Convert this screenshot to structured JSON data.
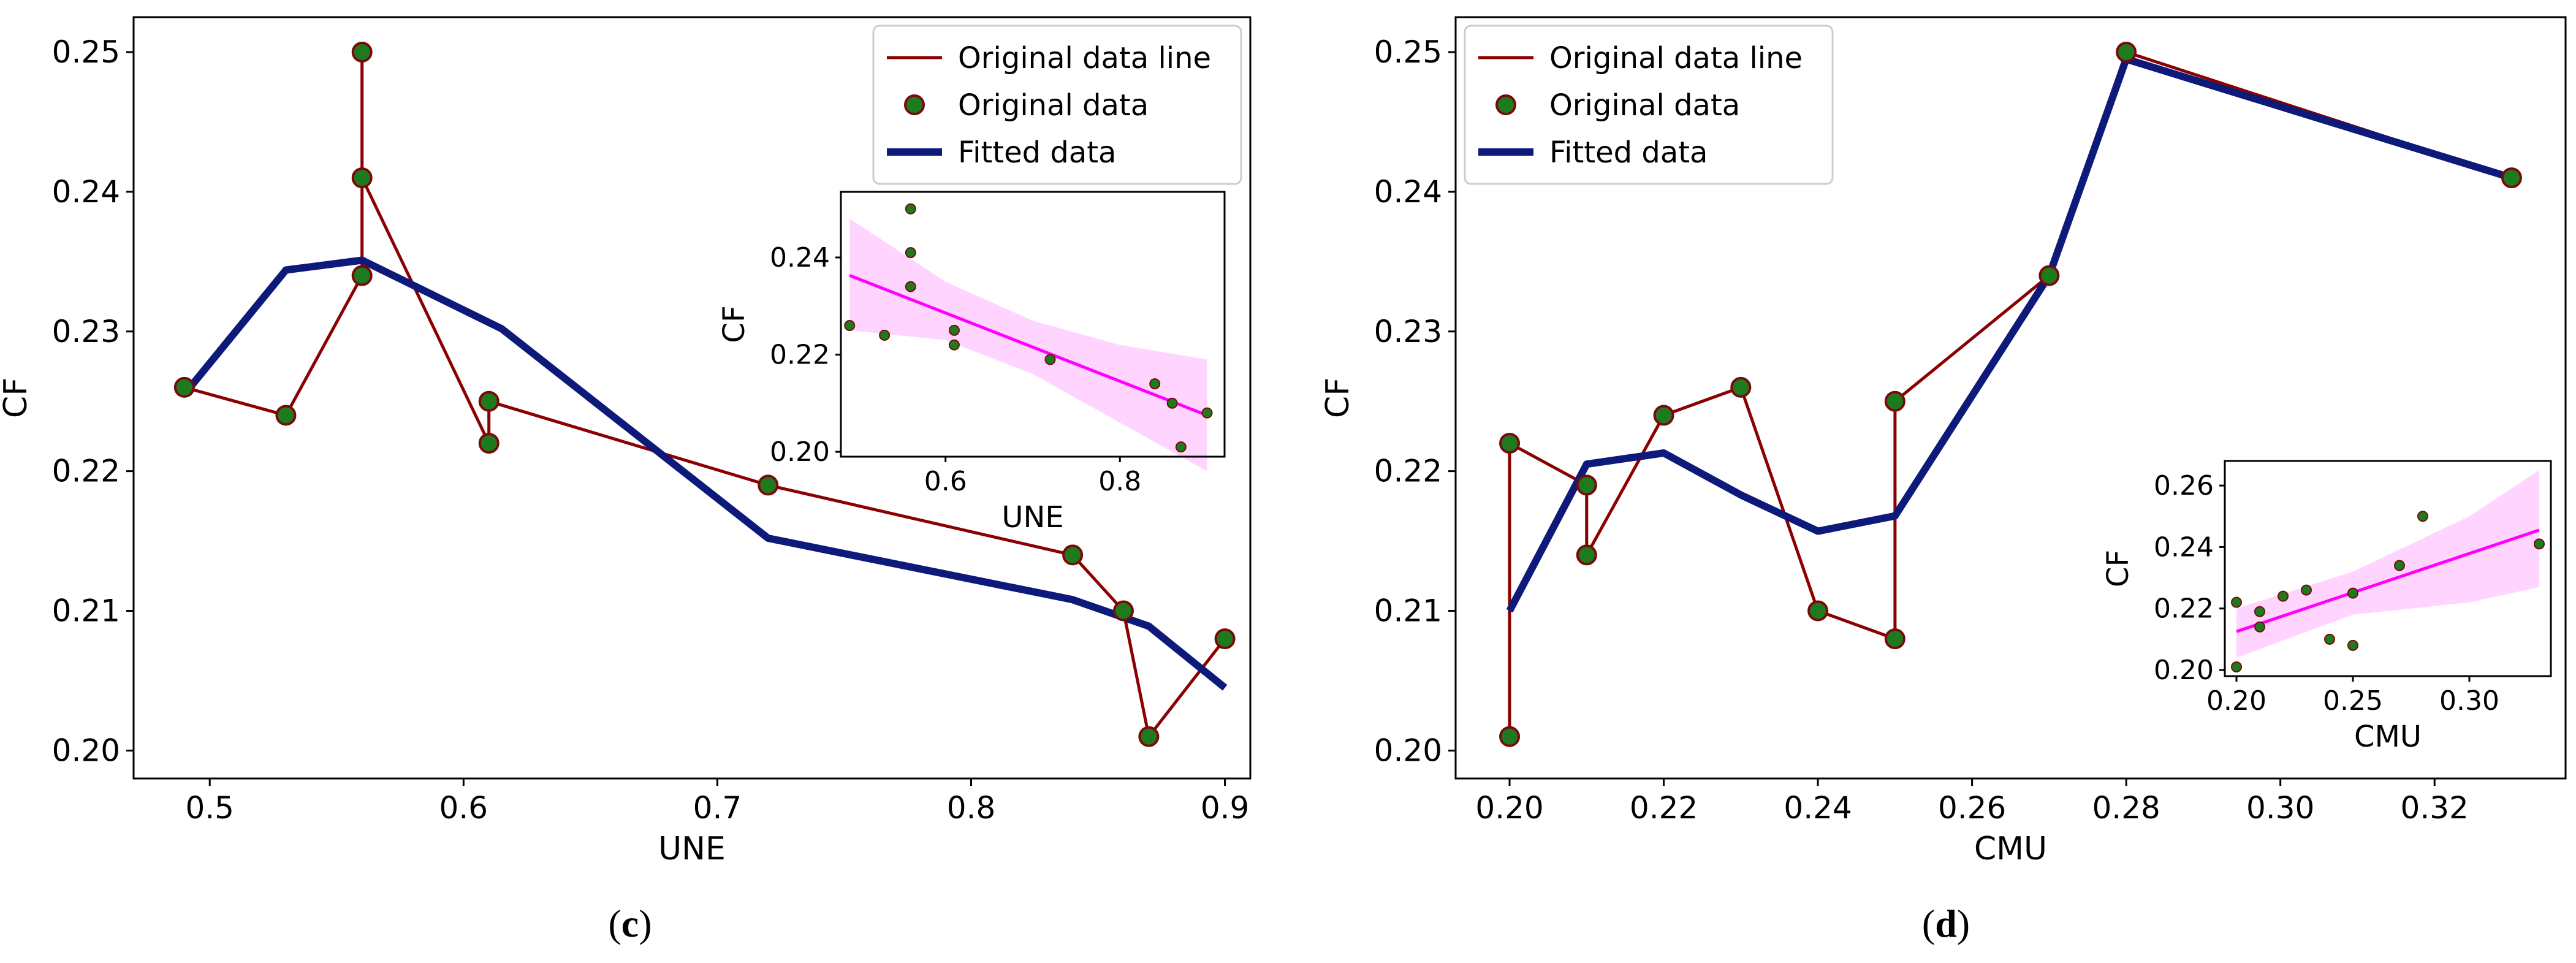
{
  "colors": {
    "data_line": "#8b0000",
    "marker_fill": "#1e7a1e",
    "marker_edge": "#7a0a0a",
    "fitted_line": "#0d1a7a",
    "regression_line": "#ff00ff",
    "ci_band": "#ffb3ff",
    "axes": "#000000",
    "background": "#ffffff"
  },
  "legend": {
    "original_line": "Original data line",
    "original_data": "Original data",
    "fitted": "Fitted data"
  },
  "chart_data": [
    {
      "id": "c",
      "panel_label": "c",
      "type": "line",
      "xlabel": "UNE",
      "ylabel": "CF",
      "xlim": [
        0.47,
        0.91
      ],
      "ylim": [
        0.198,
        0.2525
      ],
      "xticks": [
        0.5,
        0.6,
        0.7,
        0.8,
        0.9
      ],
      "xtick_labels": [
        "0.5",
        "0.6",
        "0.7",
        "0.8",
        "0.9"
      ],
      "yticks": [
        0.2,
        0.21,
        0.22,
        0.23,
        0.24,
        0.25
      ],
      "ytick_labels": [
        "0.20",
        "0.21",
        "0.22",
        "0.23",
        "0.24",
        "0.25"
      ],
      "legend_position": "top-right",
      "series": [
        {
          "name": "Original data line",
          "kind": "line",
          "x": [
            0.49,
            0.53,
            0.56,
            0.56,
            0.56,
            0.61,
            0.61,
            0.72,
            0.84,
            0.86,
            0.87,
            0.9
          ],
          "y": [
            0.226,
            0.224,
            0.234,
            0.25,
            0.241,
            0.222,
            0.225,
            0.219,
            0.214,
            0.21,
            0.201,
            0.208
          ]
        },
        {
          "name": "Original data",
          "kind": "scatter",
          "x": [
            0.49,
            0.53,
            0.56,
            0.56,
            0.56,
            0.61,
            0.61,
            0.72,
            0.84,
            0.86,
            0.87,
            0.9
          ],
          "y": [
            0.226,
            0.224,
            0.234,
            0.25,
            0.241,
            0.222,
            0.225,
            0.219,
            0.214,
            0.21,
            0.201,
            0.208
          ]
        },
        {
          "name": "Fitted data",
          "kind": "line",
          "x": [
            0.49,
            0.53,
            0.56,
            0.615,
            0.72,
            0.84,
            0.87,
            0.9
          ],
          "y": [
            0.2255,
            0.2344,
            0.2351,
            0.2302,
            0.2152,
            0.2108,
            0.2089,
            0.2045
          ]
        }
      ],
      "inset": {
        "type": "scatter",
        "position": "upper-right",
        "xlabel": "UNE",
        "ylabel": "CF",
        "xlim": [
          0.48,
          0.92
        ],
        "ylim": [
          0.199,
          0.2535
        ],
        "xticks": [
          0.6,
          0.8
        ],
        "xtick_labels": [
          "0.6",
          "0.8"
        ],
        "yticks": [
          0.2,
          0.22,
          0.24
        ],
        "ytick_labels": [
          "0.20",
          "0.22",
          "0.24"
        ],
        "points": {
          "x": [
            0.49,
            0.53,
            0.56,
            0.56,
            0.56,
            0.61,
            0.61,
            0.72,
            0.84,
            0.86,
            0.87,
            0.9
          ],
          "y": [
            0.226,
            0.224,
            0.234,
            0.25,
            0.241,
            0.222,
            0.225,
            0.219,
            0.214,
            0.21,
            0.201,
            0.208
          ]
        },
        "regression": {
          "x": [
            0.49,
            0.9
          ],
          "y": [
            0.2363,
            0.2075
          ]
        },
        "ci_band": {
          "x": [
            0.49,
            0.6,
            0.7,
            0.8,
            0.9
          ],
          "upper": [
            0.248,
            0.235,
            0.227,
            0.222,
            0.219
          ],
          "lower": [
            0.225,
            0.223,
            0.216,
            0.206,
            0.196
          ]
        }
      }
    },
    {
      "id": "d",
      "panel_label": "d",
      "type": "line",
      "xlabel": "CMU",
      "ylabel": "CF",
      "xlim": [
        0.193,
        0.337
      ],
      "ylim": [
        0.198,
        0.2525
      ],
      "xticks": [
        0.2,
        0.22,
        0.24,
        0.26,
        0.28,
        0.3,
        0.32
      ],
      "xtick_labels": [
        "0.20",
        "0.22",
        "0.24",
        "0.26",
        "0.28",
        "0.30",
        "0.32"
      ],
      "yticks": [
        0.2,
        0.21,
        0.22,
        0.23,
        0.24,
        0.25
      ],
      "ytick_labels": [
        "0.20",
        "0.21",
        "0.22",
        "0.23",
        "0.24",
        "0.25"
      ],
      "legend_position": "top-left",
      "series": [
        {
          "name": "Original data line",
          "kind": "line",
          "x": [
            0.2,
            0.2,
            0.21,
            0.21,
            0.22,
            0.23,
            0.24,
            0.25,
            0.25,
            0.27,
            0.28,
            0.33
          ],
          "y": [
            0.201,
            0.222,
            0.219,
            0.214,
            0.224,
            0.226,
            0.21,
            0.208,
            0.225,
            0.234,
            0.25,
            0.241
          ]
        },
        {
          "name": "Original data",
          "kind": "scatter",
          "x": [
            0.2,
            0.2,
            0.21,
            0.21,
            0.22,
            0.23,
            0.24,
            0.25,
            0.25,
            0.27,
            0.28,
            0.33
          ],
          "y": [
            0.201,
            0.222,
            0.219,
            0.214,
            0.224,
            0.226,
            0.21,
            0.208,
            0.225,
            0.234,
            0.25,
            0.241
          ]
        },
        {
          "name": "Fitted data",
          "kind": "line",
          "x": [
            0.2,
            0.21,
            0.22,
            0.23,
            0.24,
            0.25,
            0.27,
            0.28,
            0.33
          ],
          "y": [
            0.21,
            0.2205,
            0.2213,
            0.2183,
            0.2157,
            0.2168,
            0.234,
            0.2495,
            0.241
          ]
        }
      ],
      "inset": {
        "type": "scatter",
        "position": "lower-right",
        "xlabel": "CMU",
        "ylabel": "CF",
        "xlim": [
          0.195,
          0.335
        ],
        "ylim": [
          0.198,
          0.268
        ],
        "xticks": [
          0.2,
          0.25,
          0.3
        ],
        "xtick_labels": [
          "0.20",
          "0.25",
          "0.30"
        ],
        "yticks": [
          0.2,
          0.22,
          0.24,
          0.26
        ],
        "ytick_labels": [
          "0.20",
          "0.22",
          "0.24",
          "0.26"
        ],
        "points": {
          "x": [
            0.2,
            0.2,
            0.21,
            0.21,
            0.22,
            0.23,
            0.24,
            0.25,
            0.25,
            0.27,
            0.28,
            0.33
          ],
          "y": [
            0.201,
            0.222,
            0.219,
            0.214,
            0.224,
            0.226,
            0.21,
            0.208,
            0.225,
            0.234,
            0.25,
            0.241
          ]
        },
        "regression": {
          "x": [
            0.2,
            0.33
          ],
          "y": [
            0.2125,
            0.2455
          ]
        },
        "ci_band": {
          "x": [
            0.2,
            0.25,
            0.3,
            0.33
          ],
          "upper": [
            0.22,
            0.232,
            0.25,
            0.265
          ],
          "lower": [
            0.204,
            0.218,
            0.222,
            0.227
          ]
        }
      }
    }
  ]
}
